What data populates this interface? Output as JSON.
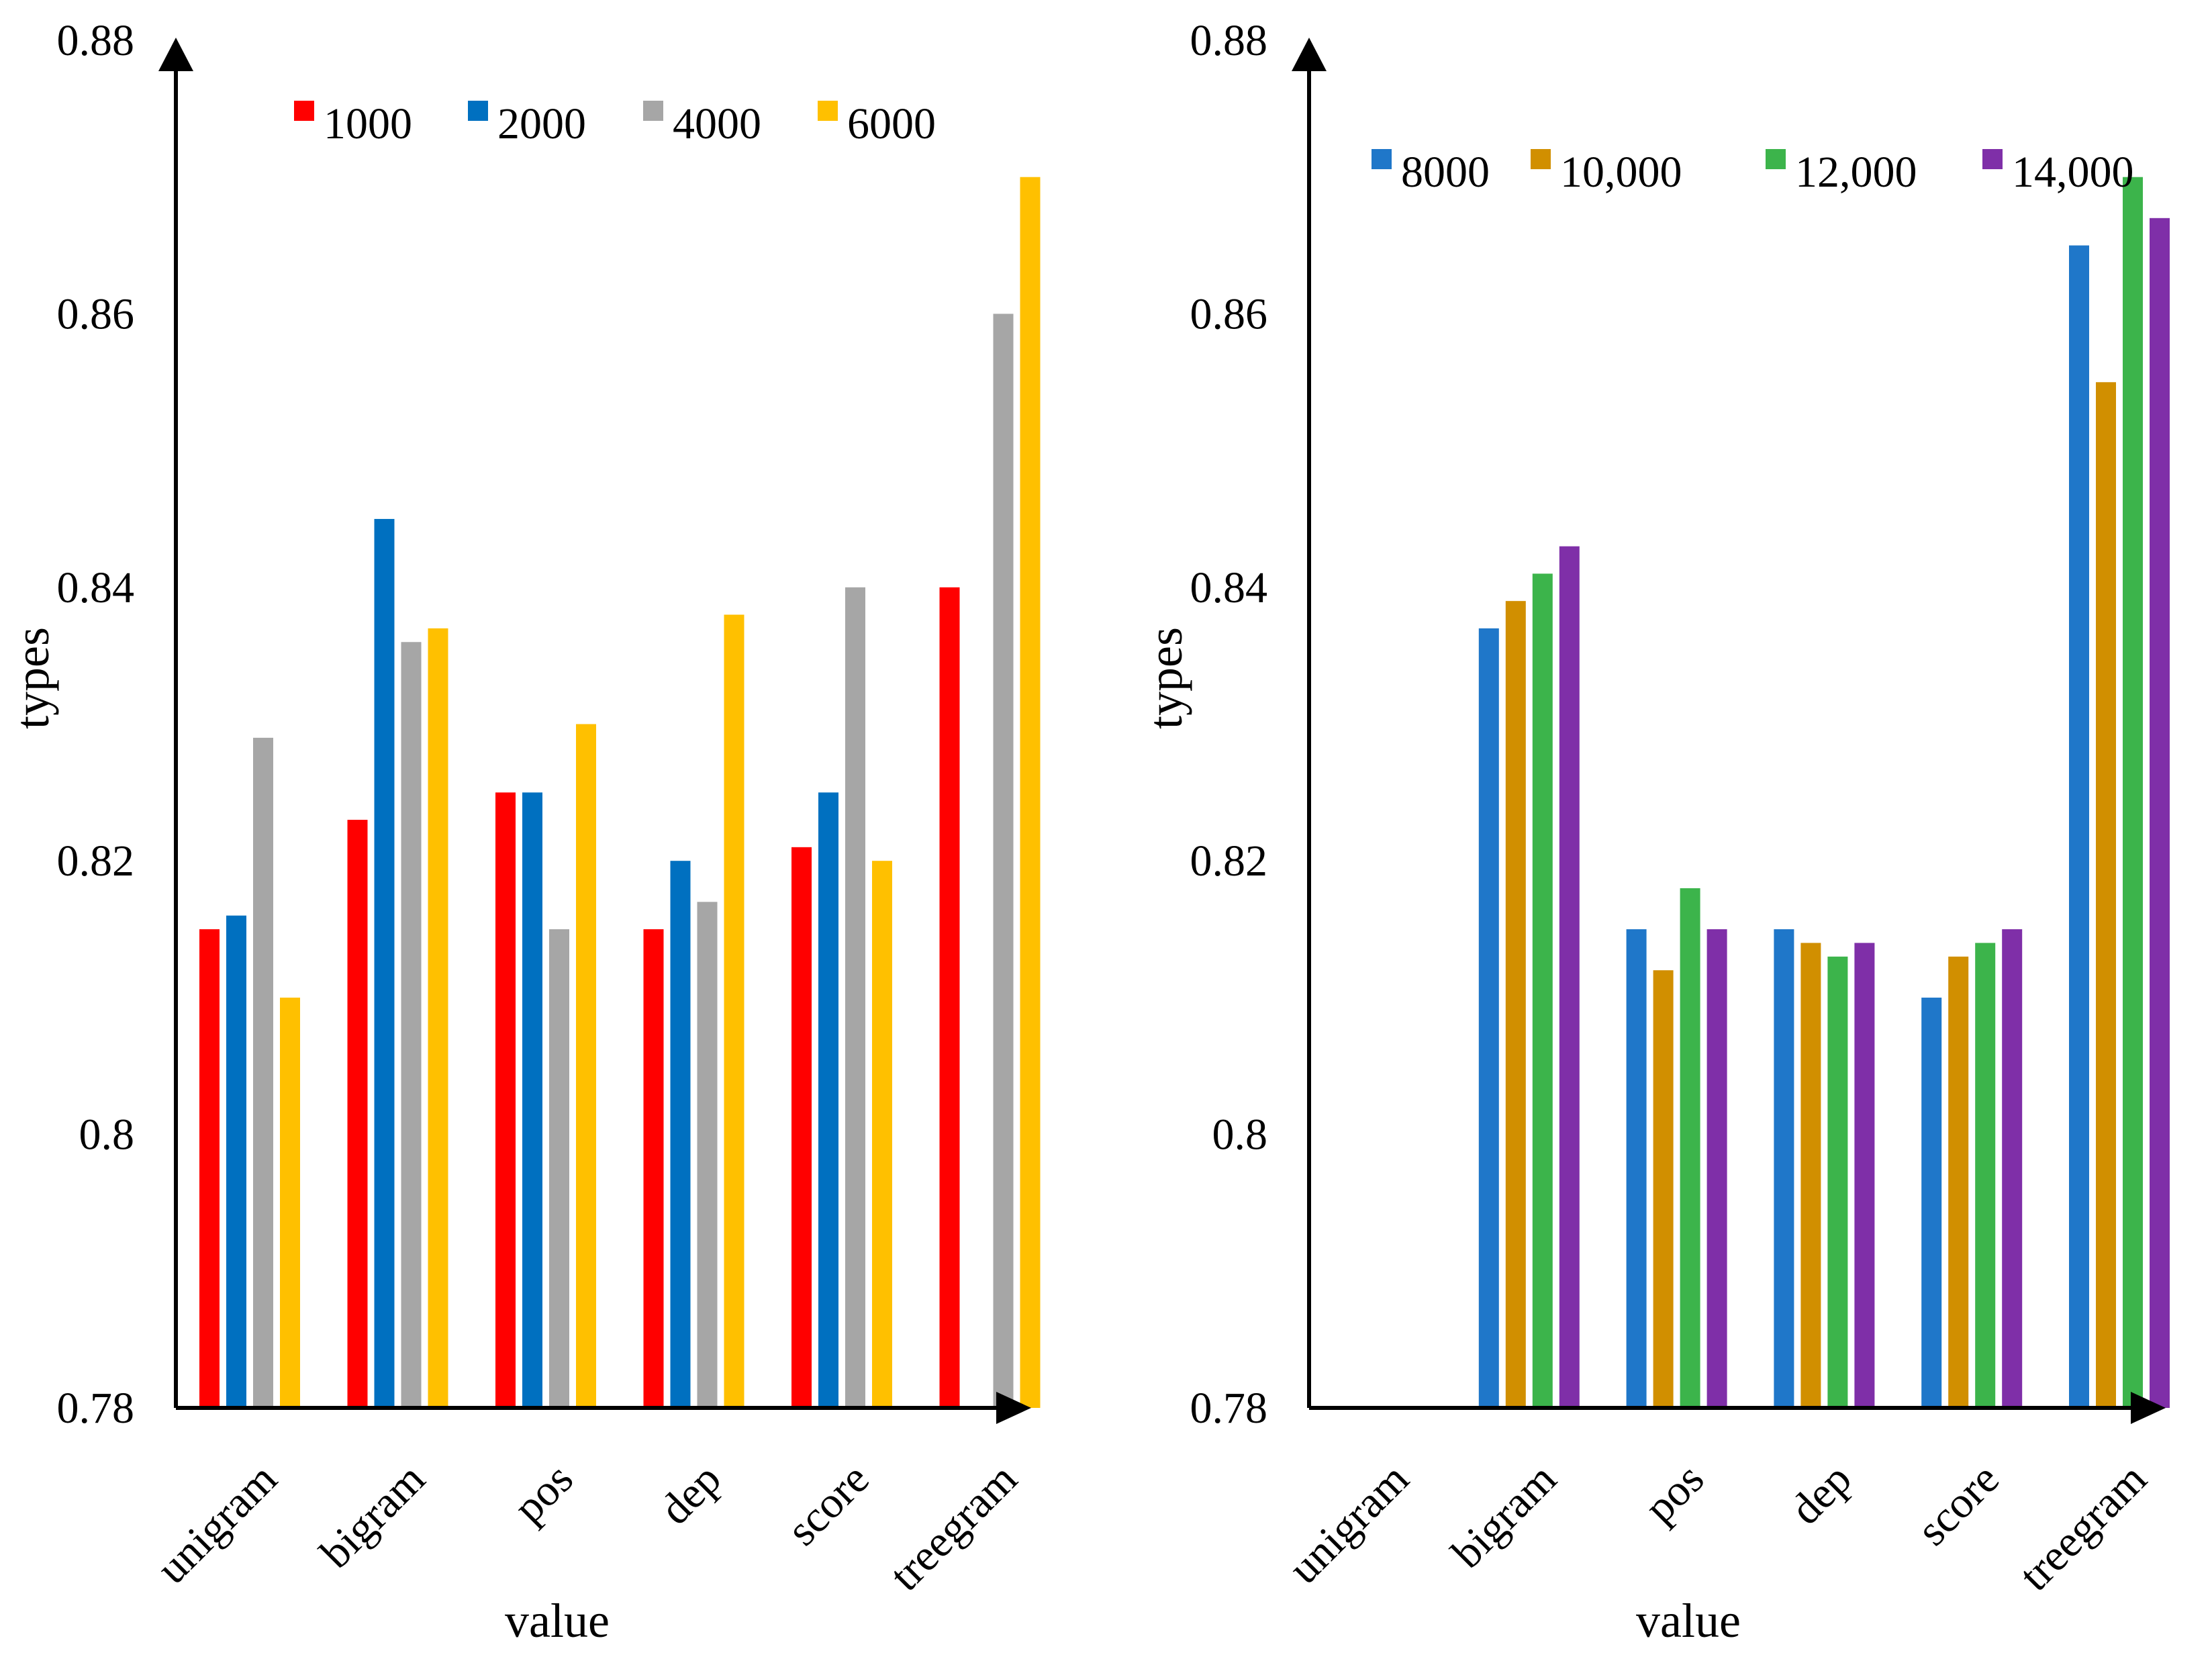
{
  "chart_data": [
    {
      "type": "bar",
      "xlabel": "value",
      "ylabel": "types",
      "ylim": [
        0.78,
        0.88
      ],
      "yticks": [
        "0.78",
        "0.8",
        "0.82",
        "0.84",
        "0.86",
        "0.88"
      ],
      "categories": [
        "unigram",
        "bigram",
        "pos",
        "dep",
        "score",
        "treegram"
      ],
      "legend_position": "top",
      "series": [
        {
          "name": "1000",
          "color": "#ff0000",
          "values": [
            0.815,
            0.823,
            0.825,
            0.815,
            0.821,
            0.84
          ]
        },
        {
          "name": "2000",
          "color": "#0070c0",
          "values": [
            0.816,
            0.845,
            0.825,
            0.82,
            0.825,
            0.78
          ]
        },
        {
          "name": "4000",
          "color": "#a6a6a6",
          "values": [
            0.829,
            0.836,
            0.815,
            0.817,
            0.84,
            0.86
          ]
        },
        {
          "name": "6000",
          "color": "#ffc000",
          "values": [
            0.81,
            0.837,
            0.83,
            0.838,
            0.82,
            0.87
          ]
        }
      ]
    },
    {
      "type": "bar",
      "xlabel": "value",
      "ylabel": "types",
      "ylim": [
        0.78,
        0.88
      ],
      "yticks": [
        "0.78",
        "0.8",
        "0.82",
        "0.84",
        "0.86",
        "0.88"
      ],
      "categories": [
        "unigram",
        "bigram",
        "pos",
        "dep",
        "score",
        "treegram"
      ],
      "legend_position": "top",
      "series": [
        {
          "name": "8000",
          "color": "#1f77c9",
          "values": [
            0.78,
            0.837,
            0.815,
            0.815,
            0.81,
            0.865
          ]
        },
        {
          "name": "10,000",
          "color": "#d18f00",
          "values": [
            0.78,
            0.839,
            0.812,
            0.814,
            0.813,
            0.855
          ]
        },
        {
          "name": "12,000",
          "color": "#3cb44b",
          "values": [
            0.78,
            0.841,
            0.818,
            0.813,
            0.814,
            0.87
          ]
        },
        {
          "name": "14,000",
          "color": "#7f2fa8",
          "values": [
            0.78,
            0.843,
            0.815,
            0.814,
            0.815,
            0.867
          ]
        }
      ]
    }
  ]
}
